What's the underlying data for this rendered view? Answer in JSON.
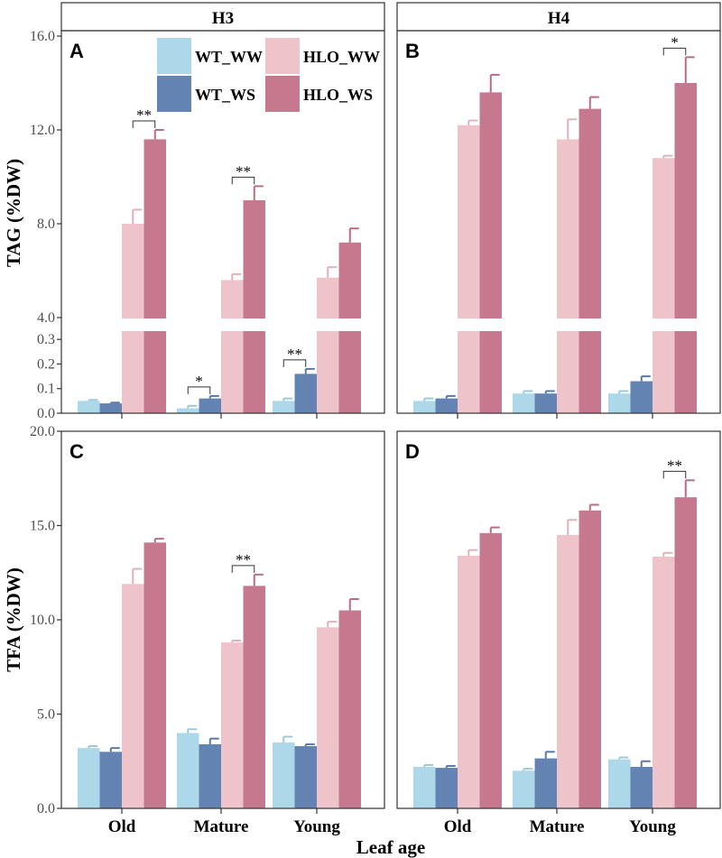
{
  "colors": {
    "WT_WW": "#add8e9",
    "WT_WS": "#6384b3",
    "HLO_WW": "#efc3ca",
    "HLO_WS": "#c6788f"
  },
  "chart_data": {
    "type": "bar",
    "xlabel": "Leaf age",
    "categories": [
      "Old",
      "Mature",
      "Young"
    ],
    "legend": [
      "WT_WW",
      "WT_WS",
      "HLO_WW",
      "HLO_WS"
    ],
    "facets": [
      "H3",
      "H4"
    ],
    "rows": [
      {
        "ylabel": "TAG (%DW)",
        "broken_axis": true,
        "upper_ticks": [
          "4.0",
          "8.0",
          "12.0",
          "16.0"
        ],
        "upper_ylim": [
          4,
          16
        ],
        "lower_ticks": [
          "0.0",
          "0.1",
          "0.2",
          "0.3"
        ],
        "lower_ylim": [
          0,
          0.33
        ],
        "panels": [
          {
            "letter": "A",
            "facet": "H3",
            "series": [
              {
                "name": "WT_WW",
                "values": [
                  0.05,
                  0.02,
                  0.05
                ],
                "errors": [
                  0.004,
                  0.01,
                  0.01
                ]
              },
              {
                "name": "WT_WS",
                "values": [
                  0.04,
                  0.06,
                  0.16
                ],
                "errors": [
                  0.003,
                  0.01,
                  0.02
                ]
              },
              {
                "name": "HLO_WW",
                "values": [
                  8.0,
                  5.6,
                  5.7
                ],
                "errors": [
                  0.6,
                  0.25,
                  0.45
                ]
              },
              {
                "name": "HLO_WS",
                "values": [
                  11.6,
                  9.0,
                  7.2
                ],
                "errors": [
                  0.4,
                  0.6,
                  0.6
                ]
              }
            ],
            "significance": [
              {
                "group": 0,
                "pair": [
                  2,
                  3
                ],
                "label": "**"
              },
              {
                "group": 1,
                "pair": [
                  2,
                  3
                ],
                "label": "**"
              },
              {
                "group": 1,
                "pair": [
                  0,
                  1
                ],
                "label": "*"
              },
              {
                "group": 2,
                "pair": [
                  0,
                  1
                ],
                "label": "**"
              }
            ]
          },
          {
            "letter": "B",
            "facet": "H4",
            "series": [
              {
                "name": "WT_WW",
                "values": [
                  0.05,
                  0.08,
                  0.08
                ],
                "errors": [
                  0.01,
                  0.01,
                  0.01
                ]
              },
              {
                "name": "WT_WS",
                "values": [
                  0.06,
                  0.08,
                  0.13
                ],
                "errors": [
                  0.01,
                  0.01,
                  0.02
                ]
              },
              {
                "name": "HLO_WW",
                "values": [
                  12.2,
                  11.6,
                  10.8
                ],
                "errors": [
                  0.2,
                  0.85,
                  0.1
                ]
              },
              {
                "name": "HLO_WS",
                "values": [
                  13.6,
                  12.9,
                  14.0
                ],
                "errors": [
                  0.75,
                  0.5,
                  1.1
                ]
              }
            ],
            "significance": [
              {
                "group": 2,
                "pair": [
                  2,
                  3
                ],
                "label": "*"
              }
            ]
          }
        ]
      },
      {
        "ylabel": "TFA (%DW)",
        "broken_axis": false,
        "ticks": [
          "0.0",
          "5.0",
          "10.0",
          "15.0",
          "20.0"
        ],
        "ylim": [
          0,
          20
        ],
        "panels": [
          {
            "letter": "C",
            "facet": "H3",
            "series": [
              {
                "name": "WT_WW",
                "values": [
                  3.2,
                  4.0,
                  3.5
                ],
                "errors": [
                  0.1,
                  0.2,
                  0.3
                ]
              },
              {
                "name": "WT_WS",
                "values": [
                  3.0,
                  3.4,
                  3.3
                ],
                "errors": [
                  0.2,
                  0.3,
                  0.1
                ]
              },
              {
                "name": "HLO_WW",
                "values": [
                  11.9,
                  8.8,
                  9.6
                ],
                "errors": [
                  0.8,
                  0.1,
                  0.3
                ]
              },
              {
                "name": "HLO_WS",
                "values": [
                  14.1,
                  11.8,
                  10.5
                ],
                "errors": [
                  0.2,
                  0.6,
                  0.6
                ]
              }
            ],
            "significance": [
              {
                "group": 1,
                "pair": [
                  2,
                  3
                ],
                "label": "**"
              }
            ]
          },
          {
            "letter": "D",
            "facet": "H4",
            "series": [
              {
                "name": "WT_WW",
                "values": [
                  2.2,
                  2.0,
                  2.6
                ],
                "errors": [
                  0.1,
                  0.1,
                  0.1
                ]
              },
              {
                "name": "WT_WS",
                "values": [
                  2.15,
                  2.65,
                  2.2
                ],
                "errors": [
                  0.1,
                  0.35,
                  0.3
                ]
              },
              {
                "name": "HLO_WW",
                "values": [
                  13.4,
                  14.5,
                  13.35
                ],
                "errors": [
                  0.3,
                  0.8,
                  0.2
                ]
              },
              {
                "name": "HLO_WS",
                "values": [
                  14.6,
                  15.8,
                  16.5
                ],
                "errors": [
                  0.3,
                  0.3,
                  0.9
                ]
              }
            ],
            "significance": [
              {
                "group": 2,
                "pair": [
                  2,
                  3
                ],
                "label": "**"
              }
            ]
          }
        ]
      }
    ]
  }
}
